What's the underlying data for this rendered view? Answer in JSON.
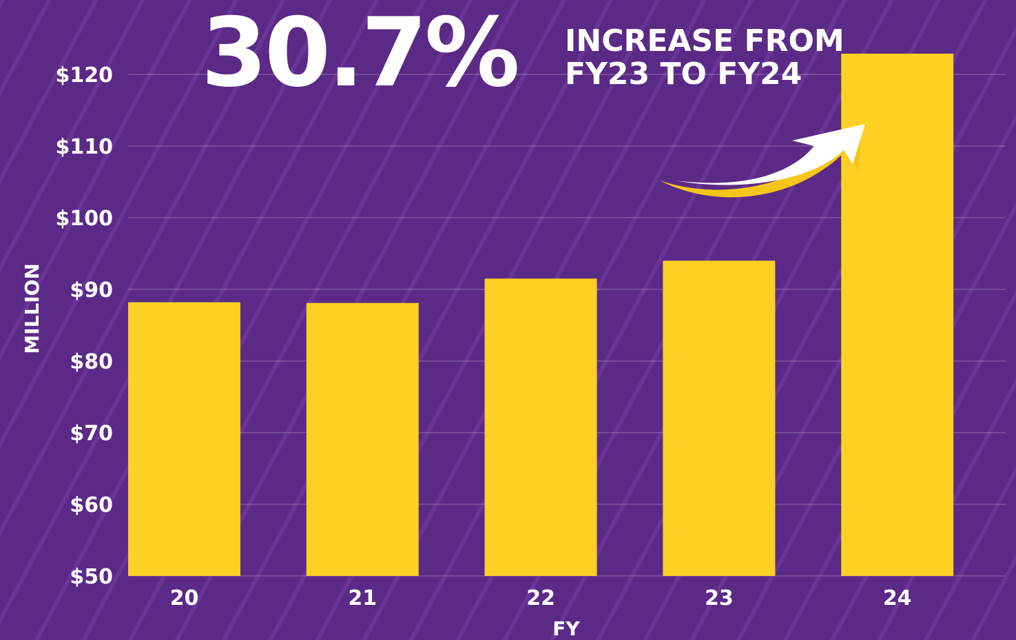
{
  "headline": {
    "percent": "30.7%",
    "line1": "INCREASE FROM",
    "line2": "FY23 TO FY24"
  },
  "colors": {
    "background": "#5a2a86",
    "bar": "#fdd023",
    "text": "#ffffff",
    "arrow_fill": "#ffffff",
    "arrow_shadow": "#f5c518"
  },
  "chart_data": {
    "type": "bar",
    "categories": [
      "20",
      "21",
      "22",
      "23",
      "24"
    ],
    "values": [
      88.2,
      88.1,
      91.5,
      94,
      122.9
    ],
    "title": "",
    "xlabel": "FY",
    "ylabel": "MILLION",
    "ylim": [
      50,
      120
    ],
    "yticks": [
      50,
      60,
      70,
      80,
      90,
      100,
      110,
      120
    ],
    "ytick_labels": [
      "$50",
      "$60",
      "$70",
      "$80",
      "$90",
      "$100",
      "$110",
      "$120"
    ],
    "grid": true,
    "legend": "none"
  }
}
